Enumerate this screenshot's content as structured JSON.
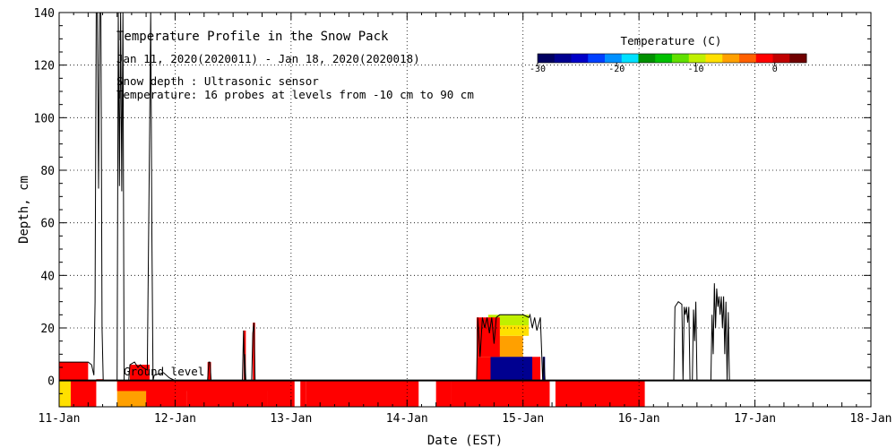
{
  "chart_data": {
    "type": "area",
    "title": "Temperature Profile in the Snow Pack",
    "subtitle": "Jan 11, 2020(2020011) - Jan 18, 2020(2020018)",
    "notes": [
      "Snow depth : Ultrasonic sensor",
      "Temperature: 16 probes at levels from -10 cm to 90 cm"
    ],
    "ground_label": "Ground level",
    "xlabel": "Date (EST)",
    "ylabel": "Depth, cm",
    "x_ticks": [
      "11-Jan",
      "12-Jan",
      "13-Jan",
      "14-Jan",
      "15-Jan",
      "16-Jan",
      "17-Jan",
      "18-Jan"
    ],
    "xlim": [
      0,
      7
    ],
    "ylim": [
      -10,
      140
    ],
    "y_ticks": [
      0,
      20,
      40,
      60,
      80,
      100,
      120,
      140
    ],
    "grid": true,
    "colorbar": {
      "title": "Temperature (C)",
      "range": [
        -30,
        4
      ],
      "ticks": [
        -30,
        -20,
        -10,
        0
      ],
      "colors": [
        "#000060",
        "#000090",
        "#0000c8",
        "#0040ff",
        "#0090ff",
        "#00e0ff",
        "#009000",
        "#00c000",
        "#60e000",
        "#c0f000",
        "#ffe000",
        "#ffa000",
        "#ff6000",
        "#ff0000",
        "#c00000",
        "#700000"
      ]
    },
    "snow_depth": [
      [
        0.0,
        7
      ],
      [
        0.25,
        7
      ],
      [
        0.28,
        6
      ],
      [
        0.3,
        2
      ],
      [
        0.31,
        30
      ],
      [
        0.32,
        140
      ],
      [
        0.33,
        140
      ],
      [
        0.34,
        73
      ],
      [
        0.35,
        140
      ],
      [
        0.36,
        140
      ],
      [
        0.37,
        20
      ],
      [
        0.38,
        0
      ],
      [
        0.5,
        0
      ],
      [
        0.51,
        140
      ],
      [
        0.52,
        74
      ],
      [
        0.53,
        140
      ],
      [
        0.54,
        72
      ],
      [
        0.55,
        140
      ],
      [
        0.56,
        0
      ],
      [
        0.6,
        0
      ],
      [
        0.61,
        6
      ],
      [
        0.65,
        7
      ],
      [
        0.68,
        5
      ],
      [
        0.7,
        6
      ],
      [
        0.72,
        5
      ],
      [
        0.76,
        4
      ],
      [
        0.78,
        95
      ],
      [
        0.79,
        140
      ],
      [
        0.8,
        56
      ],
      [
        0.81,
        0
      ],
      [
        0.82,
        2
      ],
      [
        0.9,
        3
      ],
      [
        0.95,
        1
      ],
      [
        1.0,
        0
      ],
      [
        1.28,
        0
      ],
      [
        1.29,
        7
      ],
      [
        1.3,
        7
      ],
      [
        1.31,
        0
      ],
      [
        1.58,
        0
      ],
      [
        1.59,
        19
      ],
      [
        1.6,
        0
      ],
      [
        1.6,
        10
      ],
      [
        1.61,
        0
      ],
      [
        1.66,
        0
      ],
      [
        1.67,
        18
      ],
      [
        1.68,
        22
      ],
      [
        1.69,
        0
      ],
      [
        3.6,
        0
      ],
      [
        3.61,
        24
      ],
      [
        3.63,
        9
      ],
      [
        3.65,
        24
      ],
      [
        3.67,
        20
      ],
      [
        3.69,
        24
      ],
      [
        3.71,
        18
      ],
      [
        3.73,
        24
      ],
      [
        3.75,
        14
      ],
      [
        3.77,
        24
      ],
      [
        3.8,
        25
      ],
      [
        4.0,
        25
      ],
      [
        4.05,
        24
      ],
      [
        4.06,
        25
      ],
      [
        4.08,
        20
      ],
      [
        4.1,
        24
      ],
      [
        4.12,
        19
      ],
      [
        4.15,
        24
      ],
      [
        4.17,
        0
      ],
      [
        4.18,
        9
      ],
      [
        4.19,
        0
      ],
      [
        5.3,
        0
      ],
      [
        5.31,
        28
      ],
      [
        5.34,
        30
      ],
      [
        5.37,
        29
      ],
      [
        5.38,
        0
      ],
      [
        5.39,
        28
      ],
      [
        5.4,
        25
      ],
      [
        5.41,
        28
      ],
      [
        5.42,
        22
      ],
      [
        5.43,
        28
      ],
      [
        5.44,
        0
      ],
      [
        5.46,
        0
      ],
      [
        5.47,
        27
      ],
      [
        5.48,
        15
      ],
      [
        5.49,
        30
      ],
      [
        5.5,
        0
      ],
      [
        5.62,
        0
      ],
      [
        5.63,
        25
      ],
      [
        5.64,
        10
      ],
      [
        5.65,
        37
      ],
      [
        5.66,
        20
      ],
      [
        5.67,
        35
      ],
      [
        5.68,
        28
      ],
      [
        5.69,
        32
      ],
      [
        5.7,
        25
      ],
      [
        5.71,
        32
      ],
      [
        5.72,
        20
      ],
      [
        5.73,
        32
      ],
      [
        5.74,
        10
      ],
      [
        5.75,
        30
      ],
      [
        5.76,
        0
      ],
      [
        5.77,
        26
      ],
      [
        5.78,
        0
      ]
    ]
  }
}
